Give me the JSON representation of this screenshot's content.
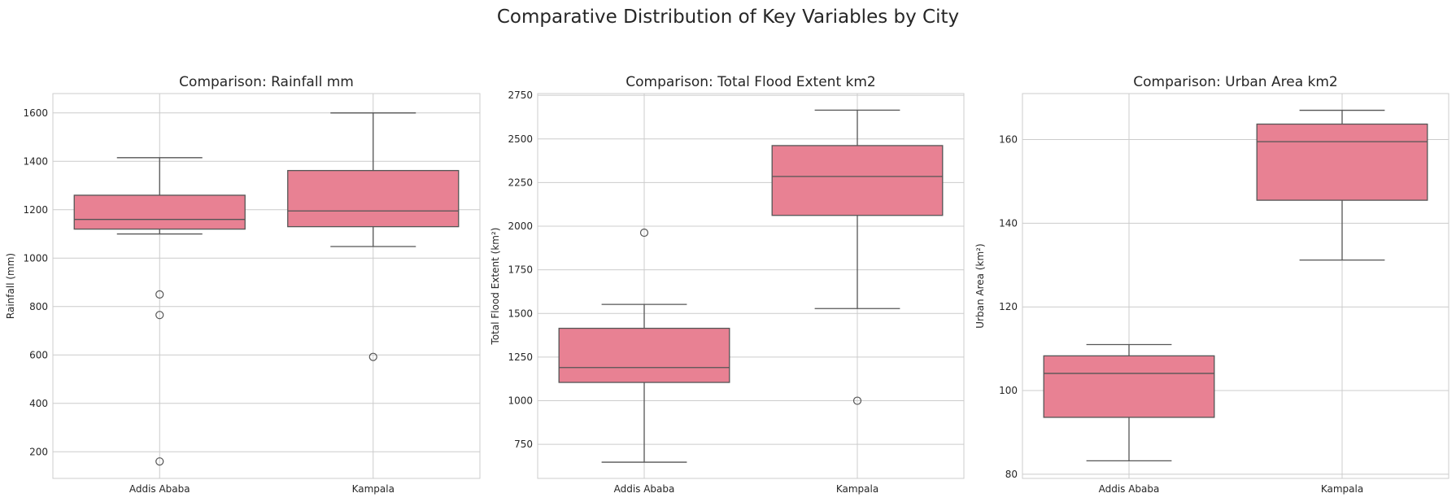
{
  "suptitle": "Comparative Distribution of Key Variables by City",
  "colors": {
    "box_fill": "#e88193",
    "line": "#555555",
    "grid": "#cccccc",
    "text": "#262626"
  },
  "chart_data": [
    {
      "type": "box",
      "title": "Comparison: Rainfall mm",
      "xlabel": "",
      "ylabel": "Rainfall (mm)",
      "ylim": [
        90,
        1680
      ],
      "yticks": [
        200,
        400,
        600,
        800,
        1000,
        1200,
        1400,
        1600
      ],
      "ytick_labels": [
        "200",
        "400",
        "600",
        "800",
        "1000",
        "1200",
        "1400",
        "1600"
      ],
      "categories": [
        "Addis Ababa",
        "Kampala"
      ],
      "boxes": [
        {
          "whislo": 1100,
          "q1": 1120,
          "med": 1160,
          "q3": 1260,
          "whishi": 1415,
          "fliers": [
            850,
            765,
            160
          ]
        },
        {
          "whislo": 1048,
          "q1": 1130,
          "med": 1195,
          "q3": 1362,
          "whishi": 1600,
          "fliers": [
            592
          ]
        }
      ]
    },
    {
      "type": "box",
      "title": "Comparison: Total Flood Extent km2",
      "xlabel": "",
      "ylabel": "Total Flood Extent (km²)",
      "ylim": [
        555,
        2760
      ],
      "yticks": [
        750,
        1000,
        1250,
        1500,
        1750,
        2000,
        2250,
        2500,
        2750
      ],
      "ytick_labels": [
        "750",
        "1000",
        "1250",
        "1500",
        "1750",
        "2000",
        "2250",
        "2500",
        "2750"
      ],
      "categories": [
        "Addis Ababa",
        "Kampala"
      ],
      "boxes": [
        {
          "whislo": 648,
          "q1": 1105,
          "med": 1190,
          "q3": 1415,
          "whishi": 1552,
          "fliers": [
            1963
          ]
        },
        {
          "whislo": 1528,
          "q1": 2062,
          "med": 2285,
          "q3": 2462,
          "whishi": 2665,
          "fliers": [
            1000
          ]
        }
      ]
    },
    {
      "type": "box",
      "title": "Comparison: Urban Area km2",
      "xlabel": "",
      "ylabel": "Urban Area (km²)",
      "ylim": [
        79,
        171
      ],
      "yticks": [
        80,
        100,
        120,
        140,
        160
      ],
      "ytick_labels": [
        "80",
        "100",
        "120",
        "140",
        "160"
      ],
      "categories": [
        "Addis Ababa",
        "Kampala"
      ],
      "boxes": [
        {
          "whislo": 83.2,
          "q1": 93.6,
          "med": 104.1,
          "q3": 108.3,
          "whishi": 111.0,
          "fliers": []
        },
        {
          "whislo": 131.2,
          "q1": 145.5,
          "med": 159.5,
          "q3": 163.7,
          "whishi": 167.0,
          "fliers": []
        }
      ]
    }
  ]
}
